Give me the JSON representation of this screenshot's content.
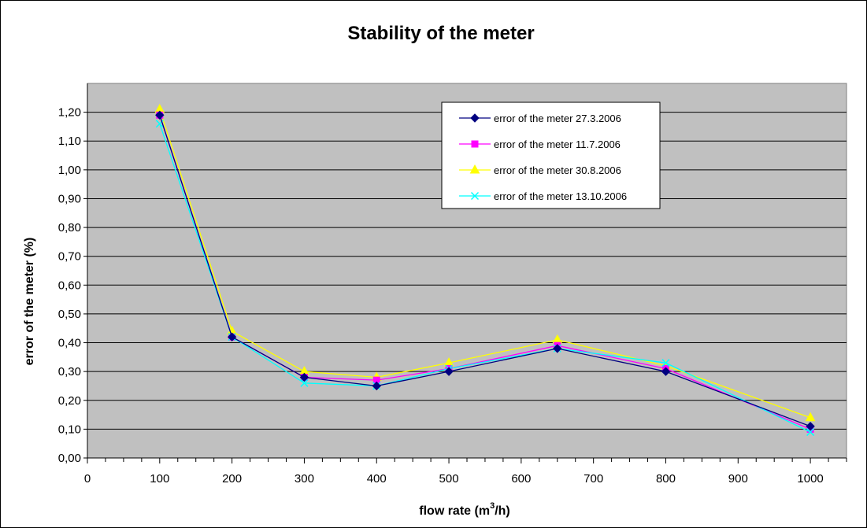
{
  "chart_data": {
    "type": "line",
    "title": "Stability of the meter",
    "xlabel": "flow rate (m",
    "xlabel_sup": "3",
    "xlabel_end": "/h)",
    "ylabel": "error of the meter (%)",
    "xlim": [
      0,
      1050
    ],
    "ylim": [
      0,
      1.3
    ],
    "x_ticks": [
      0,
      100,
      200,
      300,
      400,
      500,
      600,
      700,
      800,
      900,
      1000
    ],
    "x_tick_labels": [
      "0",
      "100",
      "200",
      "300",
      "400",
      "500",
      "600",
      "700",
      "800",
      "900",
      "1000"
    ],
    "y_ticks": [
      0,
      0.1,
      0.2,
      0.3,
      0.4,
      0.5,
      0.6,
      0.7,
      0.8,
      0.9,
      1.0,
      1.1,
      1.2
    ],
    "y_tick_labels": [
      "0,00",
      "0,10",
      "0,20",
      "0,30",
      "0,40",
      "0,50",
      "0,60",
      "0,70",
      "0,80",
      "0,90",
      "1,00",
      "1,10",
      "1,20"
    ],
    "grid": "horizontal",
    "plot_background": "#c0c0c0",
    "legend_placement": "top-right",
    "series": [
      {
        "name": "error of the meter 27.3.2006",
        "color": "#000080",
        "marker": "diamond",
        "x": [
          100,
          200,
          300,
          400,
          500,
          650,
          800,
          1000
        ],
        "y": [
          1.19,
          0.42,
          0.28,
          0.25,
          0.3,
          0.38,
          0.3,
          0.11
        ]
      },
      {
        "name": "error of the meter 11.7.2006",
        "color": "#ff00ff",
        "marker": "square",
        "x": [
          100,
          200,
          300,
          400,
          500,
          650,
          800,
          1000
        ],
        "y": [
          1.19,
          0.42,
          0.28,
          0.27,
          0.31,
          0.39,
          0.31,
          0.1
        ]
      },
      {
        "name": "error of the meter 30.8.2006",
        "color": "#ffff00",
        "marker": "triangle",
        "x": [
          100,
          200,
          300,
          400,
          500,
          650,
          800,
          1000
        ],
        "y": [
          1.21,
          0.44,
          0.3,
          0.28,
          0.33,
          0.41,
          0.32,
          0.14
        ]
      },
      {
        "name": "error of the meter 13.10.2006",
        "color": "#00ffff",
        "marker": "x",
        "x": [
          100,
          200,
          300,
          400,
          500,
          650,
          800,
          1000
        ],
        "y": [
          1.16,
          0.42,
          0.26,
          0.25,
          0.31,
          0.38,
          0.33,
          0.09
        ]
      }
    ]
  }
}
